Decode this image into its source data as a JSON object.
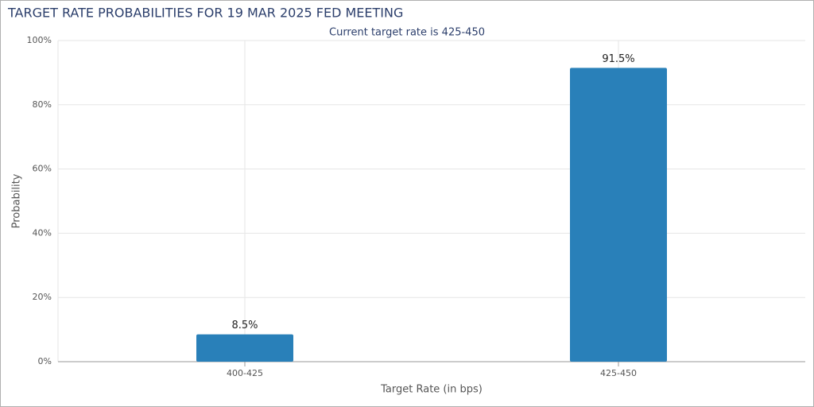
{
  "chart_data": {
    "type": "bar",
    "title": "TARGET RATE PROBABILITIES FOR 19 MAR 2025 FED MEETING",
    "subtitle": "Current target rate is 425-450",
    "x_label": "Target Rate (in bps)",
    "y_label": "Probability",
    "categories": [
      "400-425",
      "425-450"
    ],
    "values": [
      8.5,
      91.5
    ],
    "value_labels": [
      "8.5%",
      "91.5%"
    ],
    "color": "#2980b9",
    "ylim": [
      0,
      100
    ],
    "yticks": [
      {
        "value": 0,
        "label": "0%"
      },
      {
        "value": 20,
        "label": "20%"
      },
      {
        "value": 40,
        "label": "40%"
      },
      {
        "value": 60,
        "label": "60%"
      },
      {
        "value": 80,
        "label": "80%"
      },
      {
        "value": 100,
        "label": "100%"
      }
    ],
    "grid": true
  }
}
